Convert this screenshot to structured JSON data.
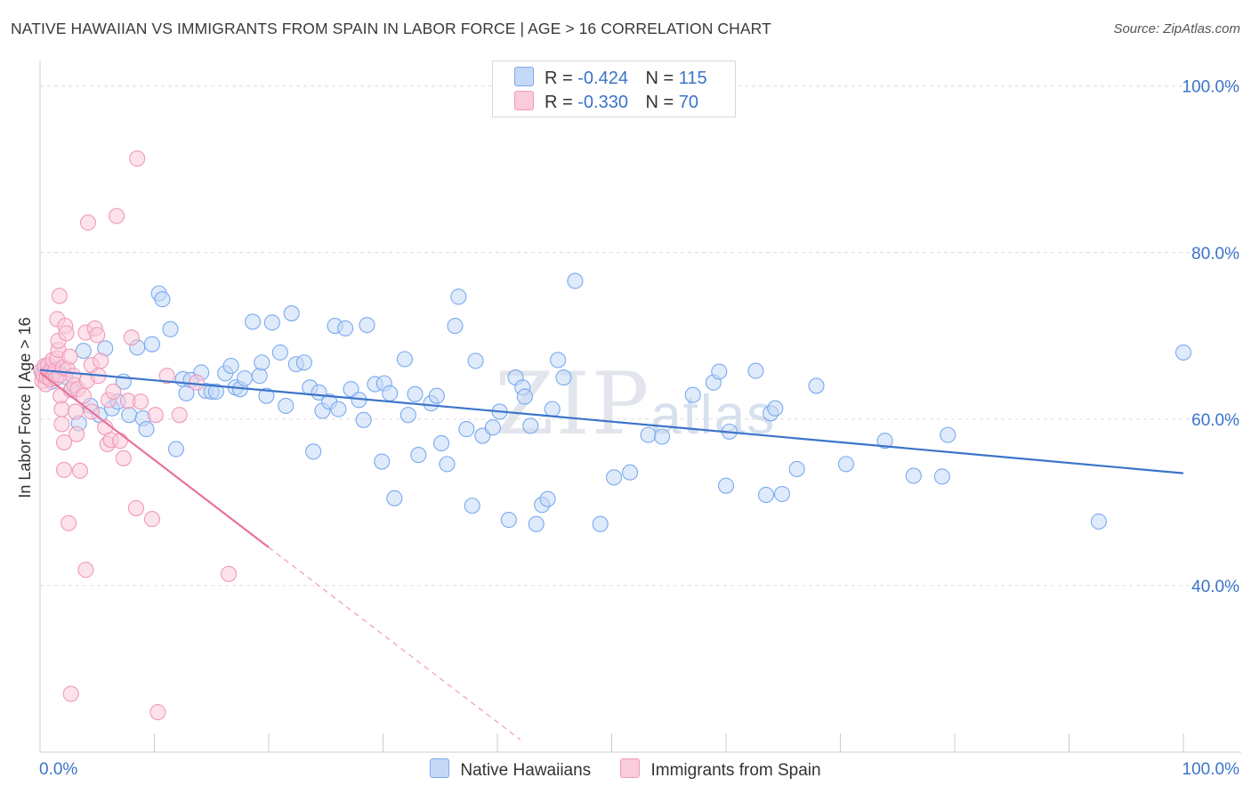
{
  "title": "NATIVE HAWAIIAN VS IMMIGRANTS FROM SPAIN IN LABOR FORCE | AGE > 16 CORRELATION CHART",
  "source": "Source: ZipAtlas.com",
  "watermark": {
    "big": "ZIP",
    "small": "atlas"
  },
  "legend": {
    "rows": [
      {
        "r_label": "R =",
        "r_value": "-0.424",
        "n_label": "N =",
        "n_value": "115",
        "color": "#7aaaf0",
        "fill": "#c5d9f6"
      },
      {
        "r_label": "R =",
        "r_value": "-0.330",
        "n_label": "N =",
        "n_value": "70",
        "color": "#f09ab8",
        "fill": "#f9cbdb"
      }
    ]
  },
  "bottom_legend": [
    "Native Hawaiians",
    "Immigrants from Spain"
  ],
  "chart_data": {
    "type": "scatter",
    "title": "NATIVE HAWAIIAN VS IMMIGRANTS FROM SPAIN IN LABOR FORCE | AGE > 16 CORRELATION CHART",
    "xlabel": "",
    "ylabel": "In Labor Force | Age > 16",
    "xlim": [
      0,
      100
    ],
    "ylim": [
      20,
      102
    ],
    "x_tick_labels": [
      "0.0%",
      "100.0%"
    ],
    "y_ticks": [
      40,
      60,
      80,
      100
    ],
    "y_tick_labels": [
      "40.0%",
      "60.0%",
      "80.0%",
      "100.0%"
    ],
    "grid": true,
    "legend_position": "top-center",
    "series": [
      {
        "name": "Native Hawaiians",
        "color": "#3b74c9",
        "fill": "#c5d9f6",
        "edge": "#7aaaf0",
        "trend": {
          "x": [
            0,
            100
          ],
          "y": [
            65.9,
            53.5
          ],
          "dashed_to": null
        },
        "points": [
          [
            0.2,
            65.5
          ],
          [
            0.5,
            66.2
          ],
          [
            0.8,
            65.2
          ],
          [
            1.0,
            64.5
          ],
          [
            1.3,
            66.0
          ],
          [
            1.6,
            65.8
          ],
          [
            2.2,
            65.1
          ],
          [
            2.8,
            63.6
          ],
          [
            3.4,
            59.5
          ],
          [
            3.8,
            68.2
          ],
          [
            4.4,
            61.6
          ],
          [
            5.2,
            60.5
          ],
          [
            5.7,
            68.5
          ],
          [
            6.3,
            61.3
          ],
          [
            6.8,
            62.1
          ],
          [
            7.3,
            64.5
          ],
          [
            7.8,
            60.5
          ],
          [
            8.5,
            68.6
          ],
          [
            9.0,
            60.1
          ],
          [
            9.3,
            58.8
          ],
          [
            9.8,
            69.0
          ],
          [
            10.4,
            75.1
          ],
          [
            10.7,
            74.4
          ],
          [
            11.4,
            70.8
          ],
          [
            11.9,
            56.4
          ],
          [
            12.5,
            64.8
          ],
          [
            12.8,
            63.1
          ],
          [
            13.2,
            64.7
          ],
          [
            14.1,
            65.6
          ],
          [
            14.5,
            63.4
          ],
          [
            15.0,
            63.3
          ],
          [
            15.4,
            63.3
          ],
          [
            16.2,
            65.5
          ],
          [
            16.7,
            66.4
          ],
          [
            17.1,
            63.8
          ],
          [
            17.5,
            63.6
          ],
          [
            17.9,
            64.9
          ],
          [
            18.6,
            71.7
          ],
          [
            19.2,
            65.2
          ],
          [
            19.4,
            66.8
          ],
          [
            19.8,
            62.8
          ],
          [
            20.3,
            71.6
          ],
          [
            21.0,
            68.0
          ],
          [
            21.5,
            61.6
          ],
          [
            22.0,
            72.7
          ],
          [
            22.4,
            66.6
          ],
          [
            23.1,
            66.8
          ],
          [
            23.6,
            63.8
          ],
          [
            23.9,
            56.1
          ],
          [
            24.4,
            63.2
          ],
          [
            24.7,
            61.0
          ],
          [
            25.3,
            62.1
          ],
          [
            25.8,
            71.2
          ],
          [
            26.1,
            61.2
          ],
          [
            26.7,
            70.9
          ],
          [
            27.2,
            63.6
          ],
          [
            27.9,
            62.3
          ],
          [
            28.3,
            59.9
          ],
          [
            28.6,
            71.3
          ],
          [
            29.3,
            64.2
          ],
          [
            29.9,
            54.9
          ],
          [
            30.1,
            64.3
          ],
          [
            30.6,
            63.1
          ],
          [
            31.0,
            50.5
          ],
          [
            31.9,
            67.2
          ],
          [
            32.2,
            60.5
          ],
          [
            32.8,
            63.0
          ],
          [
            33.1,
            55.7
          ],
          [
            34.2,
            61.9
          ],
          [
            34.7,
            62.8
          ],
          [
            35.1,
            57.1
          ],
          [
            35.6,
            54.6
          ],
          [
            36.3,
            71.2
          ],
          [
            36.6,
            74.7
          ],
          [
            37.3,
            58.8
          ],
          [
            37.8,
            49.6
          ],
          [
            38.1,
            67.0
          ],
          [
            38.7,
            58.0
          ],
          [
            39.6,
            59.0
          ],
          [
            40.2,
            60.9
          ],
          [
            41.0,
            47.9
          ],
          [
            41.6,
            65.0
          ],
          [
            42.2,
            63.8
          ],
          [
            42.4,
            62.7
          ],
          [
            42.9,
            59.2
          ],
          [
            43.4,
            47.4
          ],
          [
            43.9,
            49.7
          ],
          [
            44.4,
            50.4
          ],
          [
            44.8,
            61.2
          ],
          [
            45.3,
            67.1
          ],
          [
            45.8,
            65.0
          ],
          [
            46.8,
            76.6
          ],
          [
            49.0,
            47.4
          ],
          [
            50.2,
            53.0
          ],
          [
            51.6,
            53.6
          ],
          [
            53.2,
            58.1
          ],
          [
            54.4,
            57.9
          ],
          [
            57.1,
            62.9
          ],
          [
            58.9,
            64.4
          ],
          [
            59.4,
            65.7
          ],
          [
            60.0,
            52.0
          ],
          [
            60.3,
            58.5
          ],
          [
            62.6,
            65.8
          ],
          [
            63.5,
            50.9
          ],
          [
            63.9,
            60.7
          ],
          [
            64.3,
            61.3
          ],
          [
            64.9,
            51.0
          ],
          [
            66.2,
            54.0
          ],
          [
            67.9,
            64.0
          ],
          [
            70.5,
            54.6
          ],
          [
            73.9,
            57.4
          ],
          [
            76.4,
            53.2
          ],
          [
            78.9,
            53.1
          ],
          [
            79.4,
            58.1
          ],
          [
            92.6,
            47.7
          ],
          [
            100.0,
            68.0
          ]
        ]
      },
      {
        "name": "Immigrants from Spain",
        "color": "#e8729a",
        "fill": "#f9cbdb",
        "edge": "#f09ab8",
        "trend": {
          "x": [
            0,
            20
          ],
          "y": [
            65.6,
            44.6
          ],
          "dashed_to": [
            42,
            21.5
          ]
        },
        "points": [
          [
            0.1,
            65.8
          ],
          [
            0.2,
            64.6
          ],
          [
            0.3,
            65.2
          ],
          [
            0.4,
            66.4
          ],
          [
            0.5,
            64.2
          ],
          [
            0.6,
            65.1
          ],
          [
            0.7,
            66.5
          ],
          [
            0.8,
            65.6
          ],
          [
            0.9,
            64.8
          ],
          [
            1.0,
            66.0
          ],
          [
            1.1,
            67.1
          ],
          [
            1.2,
            65.4
          ],
          [
            1.3,
            65.8
          ],
          [
            1.4,
            64.9
          ],
          [
            1.5,
            67.3
          ],
          [
            1.5,
            72.0
          ],
          [
            1.6,
            68.3
          ],
          [
            1.6,
            69.4
          ],
          [
            1.7,
            74.8
          ],
          [
            1.7,
            65.3
          ],
          [
            1.8,
            62.8
          ],
          [
            1.9,
            61.2
          ],
          [
            1.9,
            59.4
          ],
          [
            2.0,
            66.2
          ],
          [
            2.1,
            57.2
          ],
          [
            2.1,
            53.9
          ],
          [
            2.2,
            71.2
          ],
          [
            2.3,
            70.3
          ],
          [
            2.4,
            66.0
          ],
          [
            2.6,
            67.5
          ],
          [
            2.7,
            63.5
          ],
          [
            2.9,
            65.2
          ],
          [
            3.0,
            64.1
          ],
          [
            3.1,
            60.9
          ],
          [
            3.2,
            58.2
          ],
          [
            3.3,
            63.6
          ],
          [
            3.5,
            53.8
          ],
          [
            3.8,
            62.8
          ],
          [
            4.0,
            70.4
          ],
          [
            4.1,
            64.6
          ],
          [
            4.2,
            83.6
          ],
          [
            4.5,
            66.5
          ],
          [
            4.5,
            60.9
          ],
          [
            4.8,
            70.9
          ],
          [
            5.0,
            70.1
          ],
          [
            5.1,
            65.2
          ],
          [
            5.3,
            67.0
          ],
          [
            5.7,
            59.0
          ],
          [
            5.9,
            57.0
          ],
          [
            6.0,
            62.3
          ],
          [
            6.2,
            57.5
          ],
          [
            6.4,
            63.3
          ],
          [
            6.7,
            84.4
          ],
          [
            7.0,
            57.4
          ],
          [
            7.3,
            55.3
          ],
          [
            7.7,
            62.2
          ],
          [
            8.0,
            69.8
          ],
          [
            8.4,
            49.3
          ],
          [
            8.8,
            62.1
          ],
          [
            9.8,
            48.0
          ],
          [
            10.1,
            60.5
          ],
          [
            11.1,
            65.2
          ],
          [
            12.2,
            60.5
          ],
          [
            13.7,
            64.4
          ],
          [
            16.5,
            41.4
          ],
          [
            2.5,
            47.5
          ],
          [
            4.0,
            41.9
          ],
          [
            2.7,
            27.0
          ],
          [
            10.3,
            24.8
          ],
          [
            8.5,
            91.3
          ]
        ]
      }
    ]
  }
}
